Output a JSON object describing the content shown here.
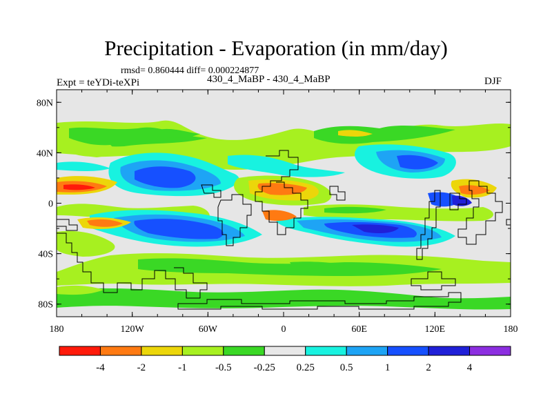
{
  "figure": {
    "title": "Precipitation - Evaporation (in mm/day)",
    "stats_line": "rmsd= 0.860444 diff= 0.000224877",
    "experiment_label": "Expt = teYDi-teXPi",
    "case_label": "430_4_MaBP - 430_4_MaBP",
    "season_label": "DJF"
  },
  "map": {
    "projection": "cylindrical-equidistant",
    "lon_range": [
      -180,
      180
    ],
    "lat_range": [
      -90,
      90
    ],
    "background_color": "#e6e6e6",
    "lat_ticks": [
      {
        "value": 80,
        "label": "80N"
      },
      {
        "value": 40,
        "label": "40N"
      },
      {
        "value": 0,
        "label": "0"
      },
      {
        "value": -40,
        "label": "40S"
      },
      {
        "value": -80,
        "label": "80S"
      }
    ],
    "lon_ticks": [
      {
        "value": -180,
        "label": "180"
      },
      {
        "value": -120,
        "label": "120W"
      },
      {
        "value": -60,
        "label": "60W"
      },
      {
        "value": 0,
        "label": "0"
      },
      {
        "value": 60,
        "label": "60E"
      },
      {
        "value": 120,
        "label": "120E"
      },
      {
        "value": 180,
        "label": "180"
      }
    ]
  },
  "colorbar": {
    "levels": [
      "-4",
      "-2",
      "-1",
      "-0.5",
      "-0.25",
      "0.25",
      "0.5",
      "1",
      "2",
      "4"
    ],
    "colors": [
      "#ff1a0a",
      "#ff7a12",
      "#ecd60a",
      "#a7f020",
      "#3ad825",
      "#e8e8e8",
      "#18f2e0",
      "#1ea4f5",
      "#1650ff",
      "#2020d8",
      "#8c2ee0"
    ]
  }
}
